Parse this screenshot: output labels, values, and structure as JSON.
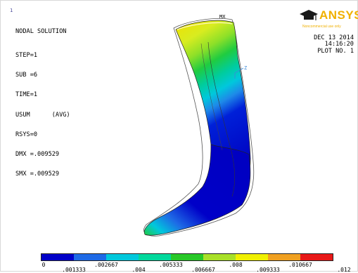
{
  "header": {
    "title": "NODAL SOLUTION",
    "lines": [
      "STEP=1",
      "SUB =6",
      "TIME=1",
      "USUM      (AVG)",
      "RSYS=0",
      "DMX =.009529",
      "SMX =.009529"
    ],
    "window_number": "1"
  },
  "plot_info": {
    "date": "DEC 13 2014",
    "time": "14:16:20",
    "plot_no": "PLOT NO.   1"
  },
  "logo": {
    "name": "ANSYS",
    "subtitle": "Noncommercial use only",
    "color": "#f0b000"
  },
  "model_labels": {
    "max_marker": "MX",
    "axis_label": "Z"
  },
  "legend": {
    "colors": [
      "#0000c8",
      "#1e6ae6",
      "#00c8dc",
      "#00d89c",
      "#28c828",
      "#a8e028",
      "#f0f000",
      "#f0a020",
      "#e81818"
    ],
    "labels_top": [
      "0",
      ".002667",
      ".005333",
      ".008",
      ".010667"
    ],
    "labels_bottom": [
      ".001333",
      ".004",
      ".006667",
      ".009333",
      ".012"
    ]
  }
}
